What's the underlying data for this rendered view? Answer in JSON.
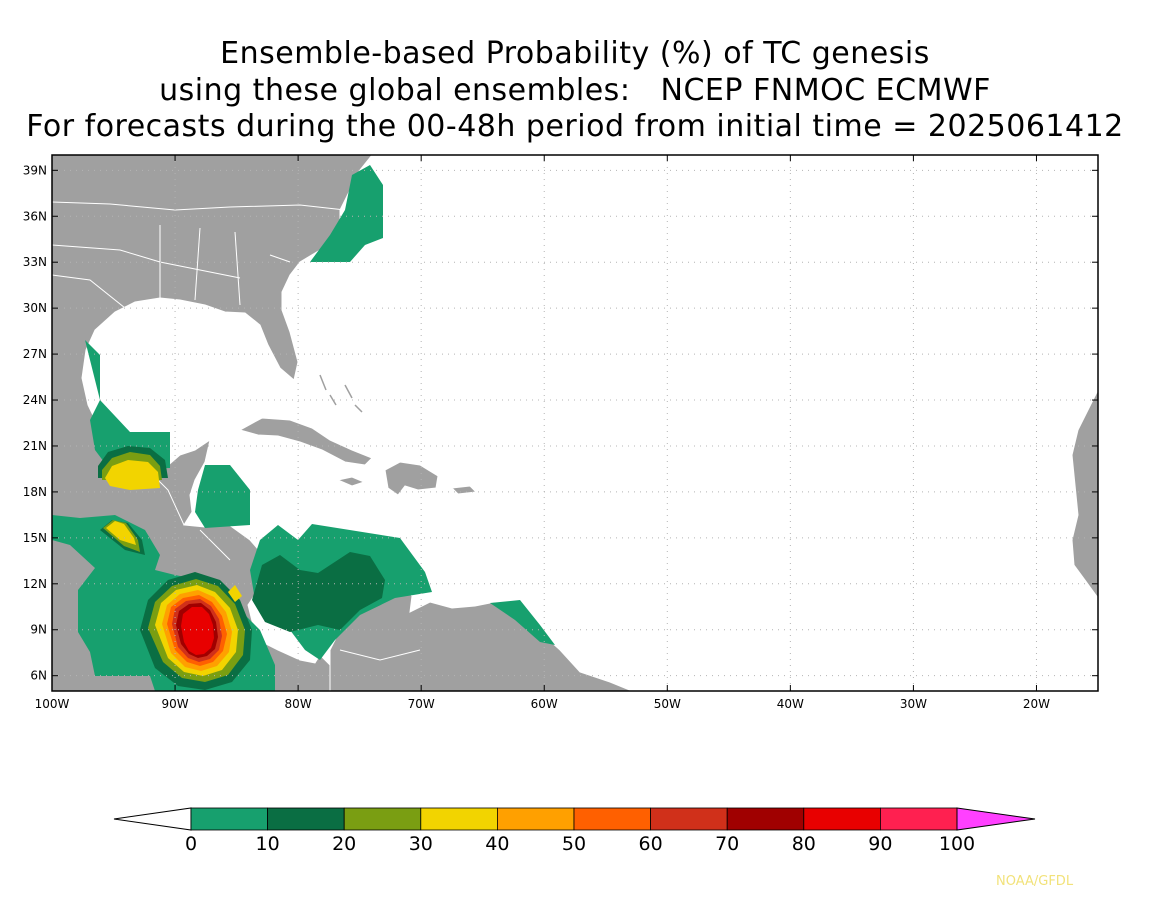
{
  "title": {
    "line1": "Ensemble-based Probability (%) of TC genesis",
    "line2": "using these global ensembles:   NCEP FNMOC ECMWF",
    "line3": "For forecasts during the 00-48h period from initial time = 2025061412"
  },
  "map": {
    "lon_range": [
      -100,
      -15
    ],
    "lat_range": [
      5,
      40
    ],
    "lat_ticks": [
      "39N",
      "36N",
      "33N",
      "30N",
      "27N",
      "24N",
      "21N",
      "18N",
      "15N",
      "12N",
      "9N",
      "6N"
    ],
    "lat_values": [
      39,
      36,
      33,
      30,
      27,
      24,
      21,
      18,
      15,
      12,
      9,
      6
    ],
    "lon_ticks": [
      "100W",
      "90W",
      "80W",
      "70W",
      "60W",
      "50W",
      "40W",
      "30W",
      "20W"
    ],
    "lon_values": [
      -100,
      -90,
      -80,
      -70,
      -60,
      -50,
      -40,
      -30,
      -20
    ],
    "land_color": "#a0a0a0",
    "border_color": "#ffffff",
    "grid": "dotted"
  },
  "colorbar": {
    "labels": [
      "0",
      "10",
      "20",
      "30",
      "40",
      "50",
      "60",
      "70",
      "80",
      "90",
      "100"
    ],
    "colors": [
      "#17a06e",
      "#0a6e43",
      "#7a9e12",
      "#f2d400",
      "#ffa000",
      "#ff6000",
      "#d0301a",
      "#a00000",
      "#e80000",
      "#ff2050"
    ],
    "under_color": "#ffffff",
    "over_color": "#ff40ff"
  },
  "credit": "NOAA/GFDL"
}
